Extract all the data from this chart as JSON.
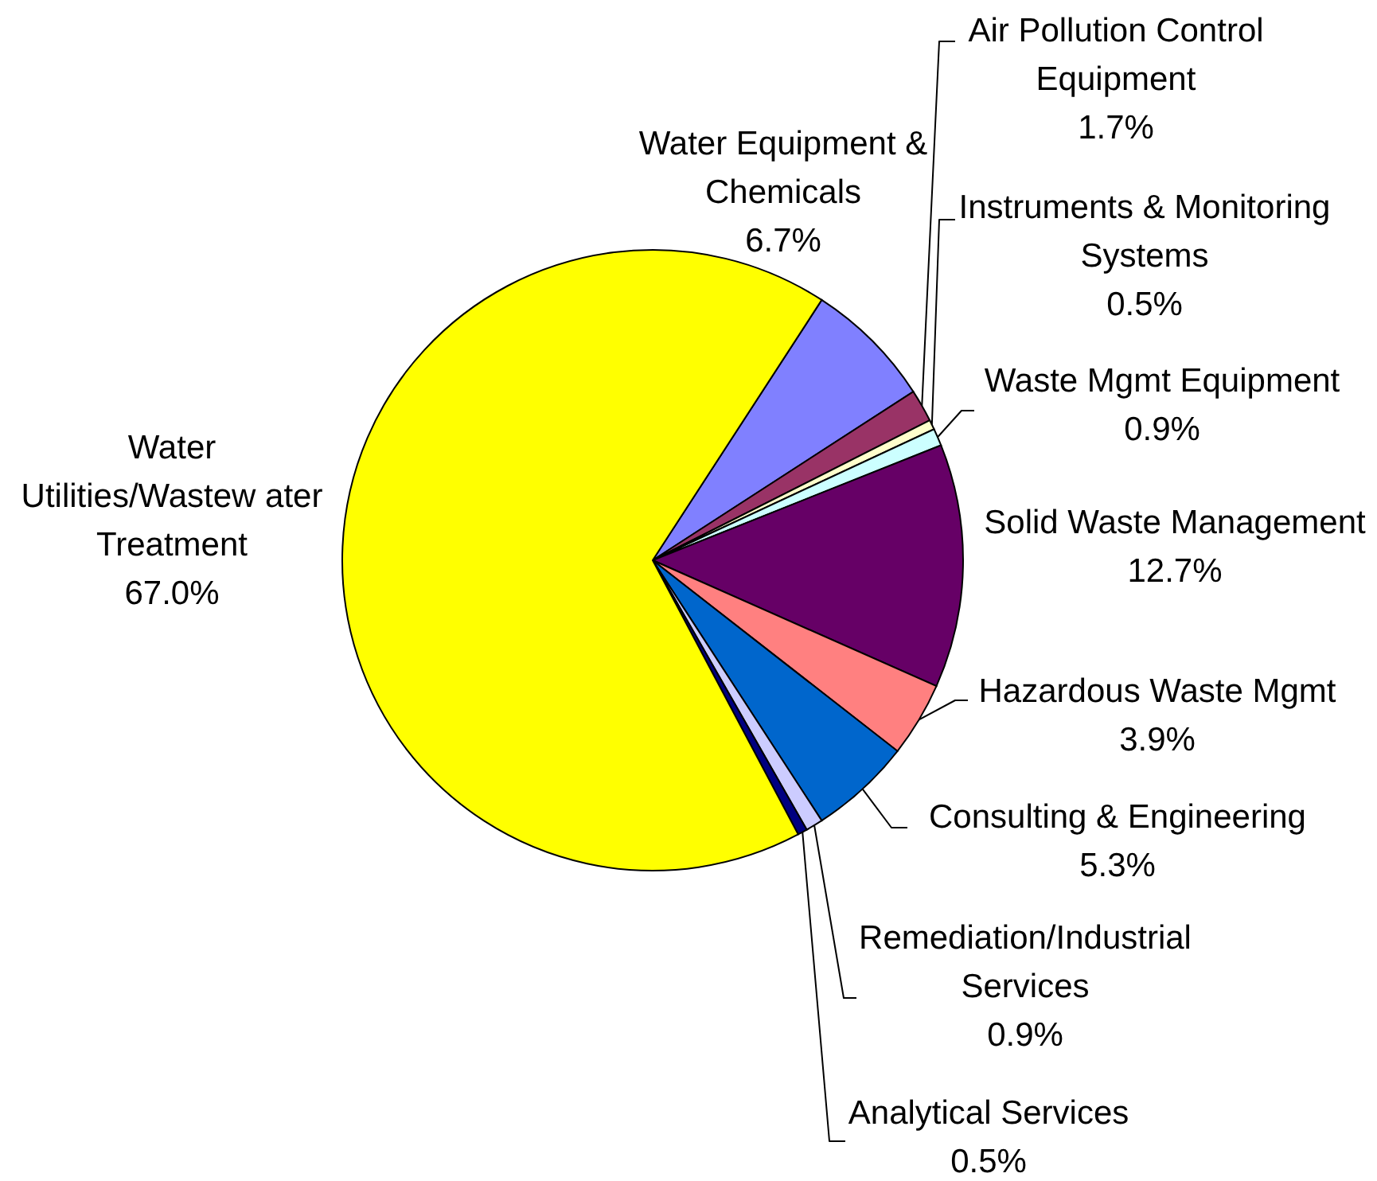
{
  "chart_data": {
    "type": "pie",
    "categories": [
      "Water Equipment & Chemicals",
      "Air Pollution Control Equipment",
      "Instruments & Monitoring Systems",
      "Waste Mgmt Equipment",
      "Solid Waste Management",
      "Hazardous Waste Mgmt",
      "Consulting & Engineering",
      "Remediation/Industrial Services",
      "Analytical Services",
      "Water Utilities/Wastew ater Treatment"
    ],
    "values": [
      6.7,
      1.7,
      0.5,
      0.9,
      12.7,
      3.9,
      5.3,
      0.9,
      0.5,
      67.0
    ],
    "value_labels": [
      "6.7%",
      "1.7%",
      "0.5%",
      "0.9%",
      "12.7%",
      "3.9%",
      "5.3%",
      "0.9%",
      "0.5%",
      "67.0%"
    ],
    "colors": [
      "#8080ff",
      "#993366",
      "#ffffcc",
      "#ccffff",
      "#660066",
      "#ff8080",
      "#0066cc",
      "#ccccff",
      "#000080",
      "#ffff00"
    ]
  }
}
